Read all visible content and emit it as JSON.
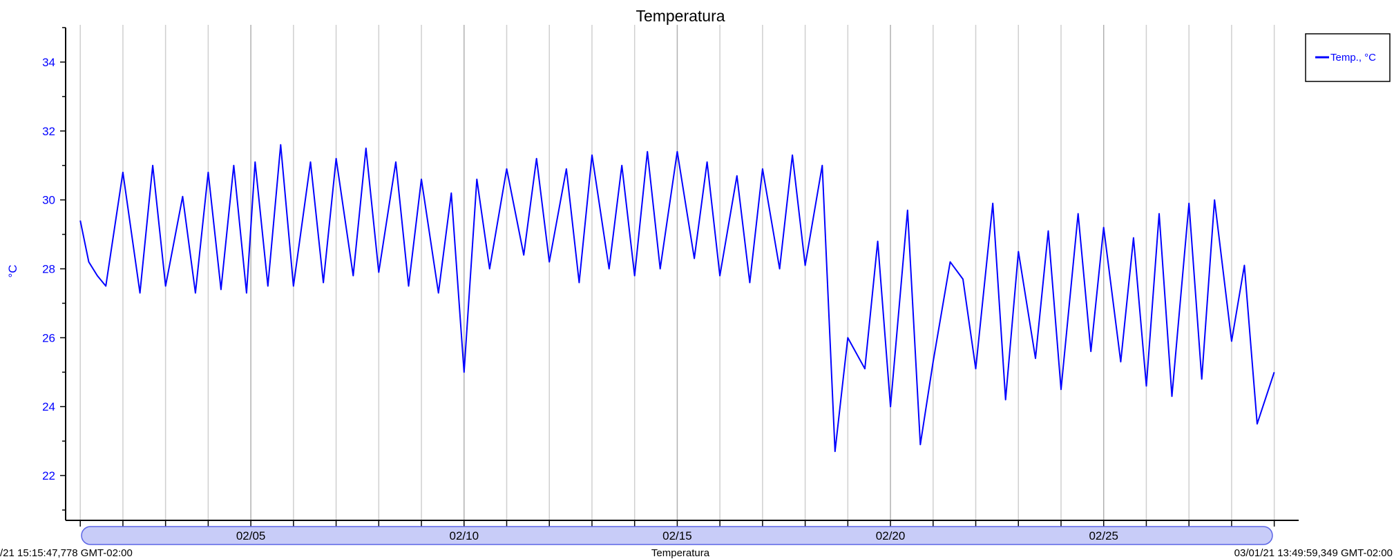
{
  "chart_data": {
    "type": "line",
    "title": "Temperatura",
    "ylabel": "°C",
    "ylim": [
      20.7,
      35.0
    ],
    "yticks": [
      22,
      24,
      26,
      28,
      30,
      32,
      34
    ],
    "xlim": [
      "02/01",
      "03/01"
    ],
    "xtick_labels": [
      {
        "day": 5,
        "label": "02/05"
      },
      {
        "day": 10,
        "label": "02/10"
      },
      {
        "day": 15,
        "label": "02/15"
      },
      {
        "day": 20,
        "label": "02/20"
      },
      {
        "day": 25,
        "label": "02/25"
      }
    ],
    "grid": "vertical",
    "legend": "top-right",
    "series": [
      {
        "name": "Temp., °C",
        "color": "#0000ff",
        "x_unit": "day of February 2021",
        "x": [
          1.0,
          1.2,
          1.4,
          1.6,
          2.0,
          2.4,
          2.7,
          3.0,
          3.4,
          3.7,
          4.0,
          4.3,
          4.6,
          4.9,
          5.1,
          5.4,
          5.7,
          6.0,
          6.4,
          6.7,
          7.0,
          7.4,
          7.7,
          8.0,
          8.4,
          8.7,
          9.0,
          9.4,
          9.7,
          10.0,
          10.3,
          10.6,
          11.0,
          11.4,
          11.7,
          12.0,
          12.4,
          12.7,
          13.0,
          13.4,
          13.7,
          14.0,
          14.3,
          14.6,
          15.0,
          15.4,
          15.7,
          16.0,
          16.4,
          16.7,
          17.0,
          17.4,
          17.7,
          18.0,
          18.4,
          18.7,
          19.0,
          19.4,
          19.7,
          20.0,
          20.4,
          20.7,
          21.0,
          21.4,
          21.7,
          22.0,
          22.4,
          22.7,
          23.0,
          23.4,
          23.7,
          24.0,
          24.4,
          24.7,
          25.0,
          25.4,
          25.7,
          26.0,
          26.3,
          26.6,
          27.0,
          27.3,
          27.6,
          28.0,
          28.3,
          28.6,
          29.0
        ],
        "y": [
          29.4,
          28.2,
          27.8,
          27.5,
          30.8,
          27.3,
          31.0,
          27.5,
          30.1,
          27.3,
          30.8,
          27.4,
          31.0,
          27.3,
          31.1,
          27.5,
          31.6,
          27.5,
          31.1,
          27.6,
          31.2,
          27.8,
          31.5,
          27.9,
          31.1,
          27.5,
          30.6,
          27.3,
          30.2,
          25.0,
          30.6,
          28.0,
          30.9,
          28.4,
          31.2,
          28.2,
          30.9,
          27.6,
          31.3,
          28.0,
          31.0,
          27.8,
          31.4,
          28.0,
          31.4,
          28.3,
          31.1,
          27.8,
          30.7,
          27.6,
          30.9,
          28.0,
          31.3,
          28.1,
          31.0,
          22.7,
          26.0,
          25.1,
          28.8,
          24.0,
          29.7,
          22.9,
          25.3,
          28.2,
          27.7,
          25.1,
          29.9,
          24.2,
          28.5,
          25.4,
          29.1,
          24.5,
          29.6,
          25.6,
          29.2,
          25.3,
          28.9,
          24.6,
          29.6,
          24.3,
          29.9,
          24.8,
          30.0,
          25.9,
          28.1,
          23.5,
          25.0
        ]
      }
    ]
  },
  "scrollbar": {
    "left_label": "/21 15:15:47,778 GMT-02:00",
    "center_label": "Temperatura",
    "right_label": "03/01/21 13:49:59,349 GMT-02:00"
  },
  "colors": {
    "series": "#0000ff",
    "axis": "#000000",
    "grid": "#c8c8c8",
    "scrollbar_fill": "#c8ccf8",
    "scrollbar_border": "#5a64e6"
  }
}
